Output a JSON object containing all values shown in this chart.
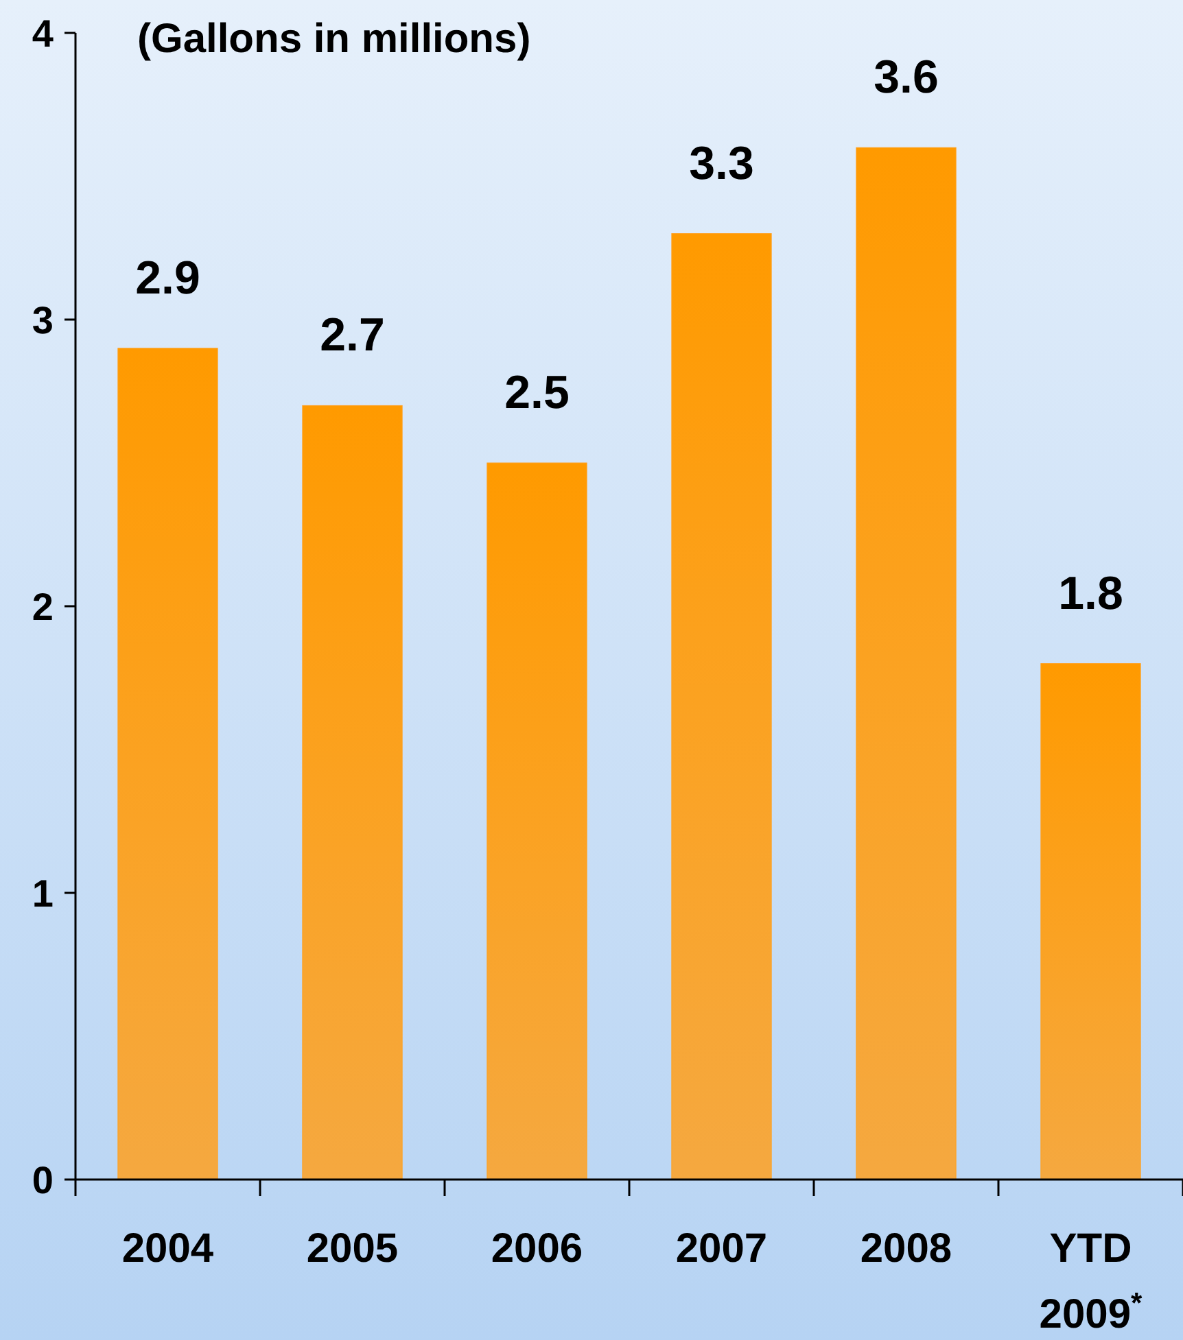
{
  "chart_data": {
    "type": "bar",
    "title": "(Gallons in millions)",
    "categories": [
      "2004",
      "2005",
      "2006",
      "2007",
      "2008",
      "YTD 2009$^{*}$"
    ],
    "values": [
      2.9,
      2.7,
      2.5,
      3.3,
      3.6,
      1.8
    ],
    "color": "#ffa020",
    "ylim": [
      0,
      4
    ],
    "yticks": [
      0,
      1,
      2,
      3,
      4
    ],
    "data_labels": true,
    "grid": false
  }
}
